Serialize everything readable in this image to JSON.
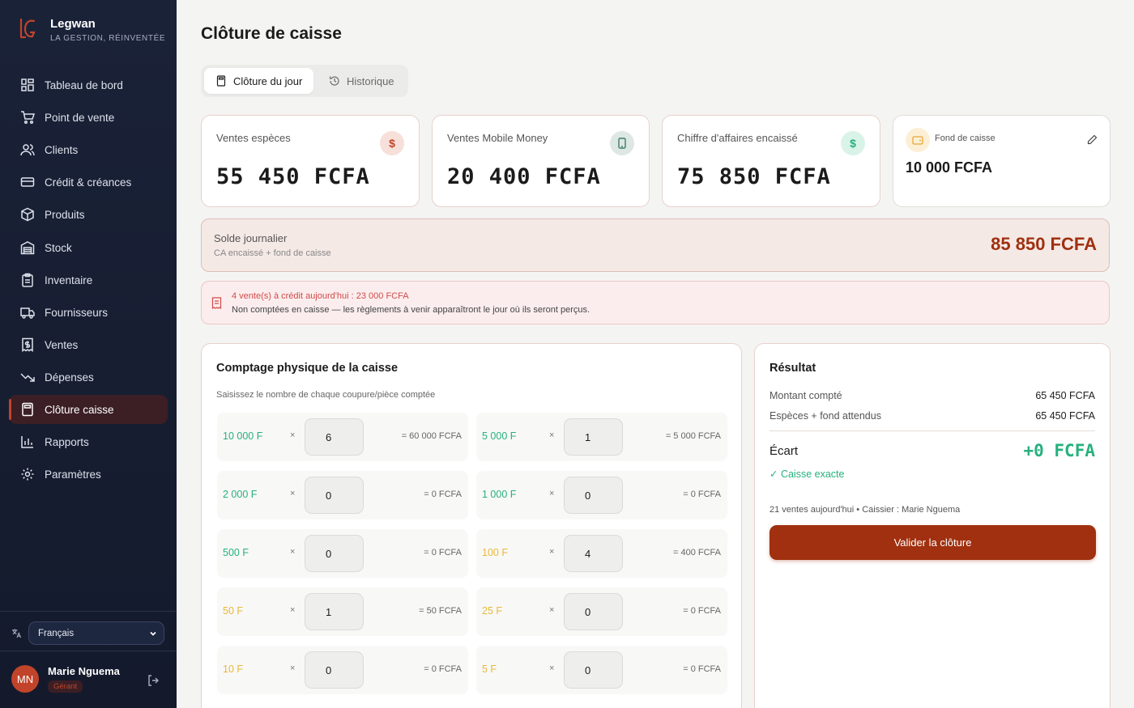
{
  "brand": {
    "name": "Legwan",
    "tagline": "LA GESTION, RÉINVENTÉE"
  },
  "sidebar": {
    "items": [
      {
        "label": "Tableau de bord",
        "icon": "dashboard-icon"
      },
      {
        "label": "Point de vente",
        "icon": "cart-icon"
      },
      {
        "label": "Clients",
        "icon": "users-icon"
      },
      {
        "label": "Crédit & créances",
        "icon": "credit-card-icon"
      },
      {
        "label": "Produits",
        "icon": "package-icon"
      },
      {
        "label": "Stock",
        "icon": "warehouse-icon"
      },
      {
        "label": "Inventaire",
        "icon": "clipboard-icon"
      },
      {
        "label": "Fournisseurs",
        "icon": "truck-icon"
      },
      {
        "label": "Ventes",
        "icon": "receipt-icon"
      },
      {
        "label": "Dépenses",
        "icon": "trending-down-icon"
      },
      {
        "label": "Clôture caisse",
        "icon": "calculator-icon",
        "active": true
      },
      {
        "label": "Rapports",
        "icon": "bar-chart-icon"
      },
      {
        "label": "Paramètres",
        "icon": "gear-icon"
      }
    ],
    "language": "Français",
    "user": {
      "initials": "MN",
      "name": "Marie Nguema",
      "role": "Gérant"
    }
  },
  "page": {
    "title": "Clôture de caisse"
  },
  "tabs": [
    {
      "label": "Clôture du jour"
    },
    {
      "label": "Historique"
    }
  ],
  "stats": [
    {
      "label": "Ventes espèces",
      "value": "55 450 FCFA",
      "icon": "dollar-icon",
      "color": "#c1442a"
    },
    {
      "label": "Ventes Mobile Money",
      "value": "20 400 FCFA",
      "icon": "smartphone-icon",
      "color": "#3e7d6b"
    },
    {
      "label": "Chiffre d'affaires encaissé",
      "value": "75 850 FCFA",
      "icon": "dollar-icon",
      "color": "#27b07e"
    }
  ],
  "fund": {
    "label": "Fond de caisse",
    "value": "10 000 FCFA"
  },
  "solde": {
    "label": "Solde journalier",
    "sub": "CA encaissé + fond de caisse",
    "value": "85 850 FCFA"
  },
  "banner": {
    "title": "4 vente(s) à crédit aujourd'hui : 23 000 FCFA",
    "text": "Non comptées en caisse — les règlements à venir apparaîtront le jour où ils seront perçus."
  },
  "counting": {
    "title": "Comptage physique de la caisse",
    "subtitle": "Saisissez le nombre de chaque coupure/pièce comptée",
    "times": "×",
    "denominations": [
      {
        "label": "10 000 F",
        "count": "6",
        "total": "= 60 000 FCFA",
        "color": "#27b07e"
      },
      {
        "label": "5 000 F",
        "count": "1",
        "total": "= 5 000 FCFA",
        "color": "#27b07e"
      },
      {
        "label": "2 000 F",
        "count": "0",
        "total": "= 0 FCFA",
        "color": "#27b07e"
      },
      {
        "label": "1 000 F",
        "count": "0",
        "total": "= 0 FCFA",
        "color": "#27b07e"
      },
      {
        "label": "500 F",
        "count": "0",
        "total": "= 0 FCFA",
        "color": "#27b07e"
      },
      {
        "label": "100 F",
        "count": "4",
        "total": "= 400 FCFA",
        "color": "#e8b93a"
      },
      {
        "label": "50 F",
        "count": "1",
        "total": "= 50 FCFA",
        "color": "#e8b93a"
      },
      {
        "label": "25 F",
        "count": "0",
        "total": "= 0 FCFA",
        "color": "#e8b93a"
      },
      {
        "label": "10 F",
        "count": "0",
        "total": "= 0 FCFA",
        "color": "#e8b93a"
      },
      {
        "label": "5 F",
        "count": "0",
        "total": "= 0 FCFA",
        "color": "#e8b93a"
      }
    ]
  },
  "result": {
    "title": "Résultat",
    "counted_label": "Montant compté",
    "counted_value": "65 450 FCFA",
    "expected_label": "Espèces + fond attendus",
    "expected_value": "65 450 FCFA",
    "gap_label": "Écart",
    "gap_value": "+0 FCFA",
    "status": "✓ Caisse exacte",
    "footer": "21 ventes aujourd'hui • Caissier : Marie Nguema",
    "validate_label": "Valider la clôture"
  },
  "colors": {
    "accent": "#a0300f",
    "success": "#27b07e",
    "sidebar": "#1a2238"
  }
}
